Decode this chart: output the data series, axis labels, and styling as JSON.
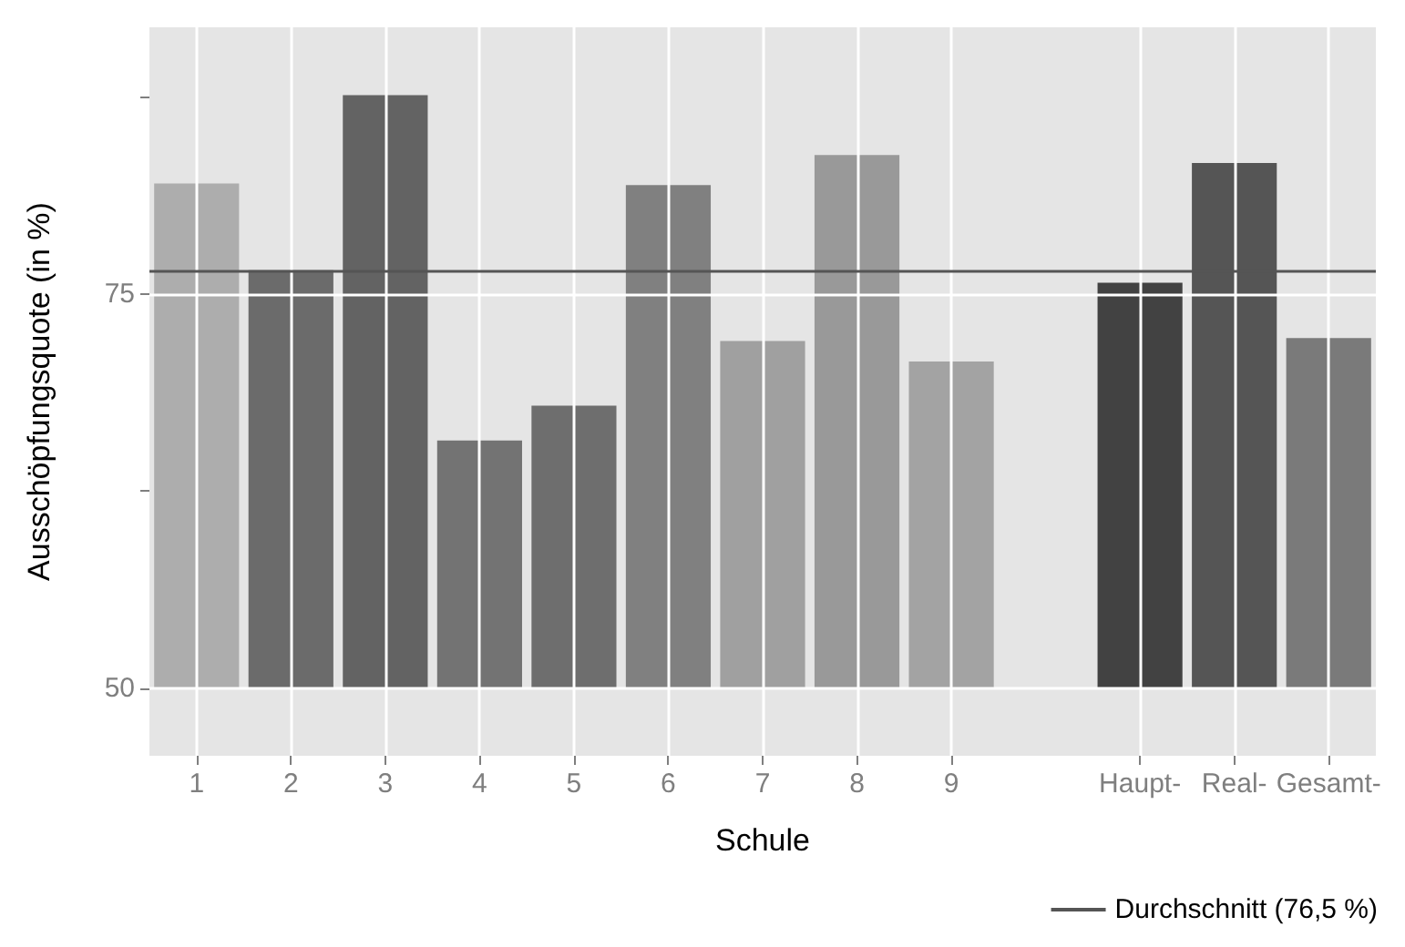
{
  "chart_data": {
    "type": "bar",
    "xlabel": "Schule",
    "ylabel": "Ausschöpfungsquote (in %)",
    "categories": [
      "1",
      "2",
      "3",
      "4",
      "5",
      "6",
      "7",
      "8",
      "9",
      null,
      "Haupt-",
      "Real-",
      "Gesamt-"
    ],
    "base": [
      50,
      50,
      50,
      50,
      50,
      50,
      50,
      50,
      50,
      null,
      50,
      50,
      50
    ],
    "values": [
      32.0,
      26.5,
      37.6,
      15.7,
      17.9,
      31.9,
      22.0,
      33.8,
      20.7,
      null,
      25.7,
      33.3,
      22.2
    ],
    "colors": [
      "#adadad",
      "#6b6b6b",
      "#636363",
      "#737373",
      "#6e6e6e",
      "#808080",
      "#a0a0a0",
      "#999999",
      "#a3a3a3",
      null,
      "#424242",
      "#555555",
      "#7a7a7a"
    ],
    "ylim": [
      45.7,
      91.9
    ],
    "yticks": [
      50,
      {
        "value": 62.5,
        "label": null
      },
      75,
      {
        "value": 87.5,
        "label": null
      }
    ],
    "ref_lines": [
      {
        "axis": "y",
        "value": 76.5,
        "label": "Durchschnitt (76,5 %)",
        "color": "#555555",
        "line_style": "solid"
      }
    ],
    "grid": true,
    "legend": "bottom right"
  }
}
